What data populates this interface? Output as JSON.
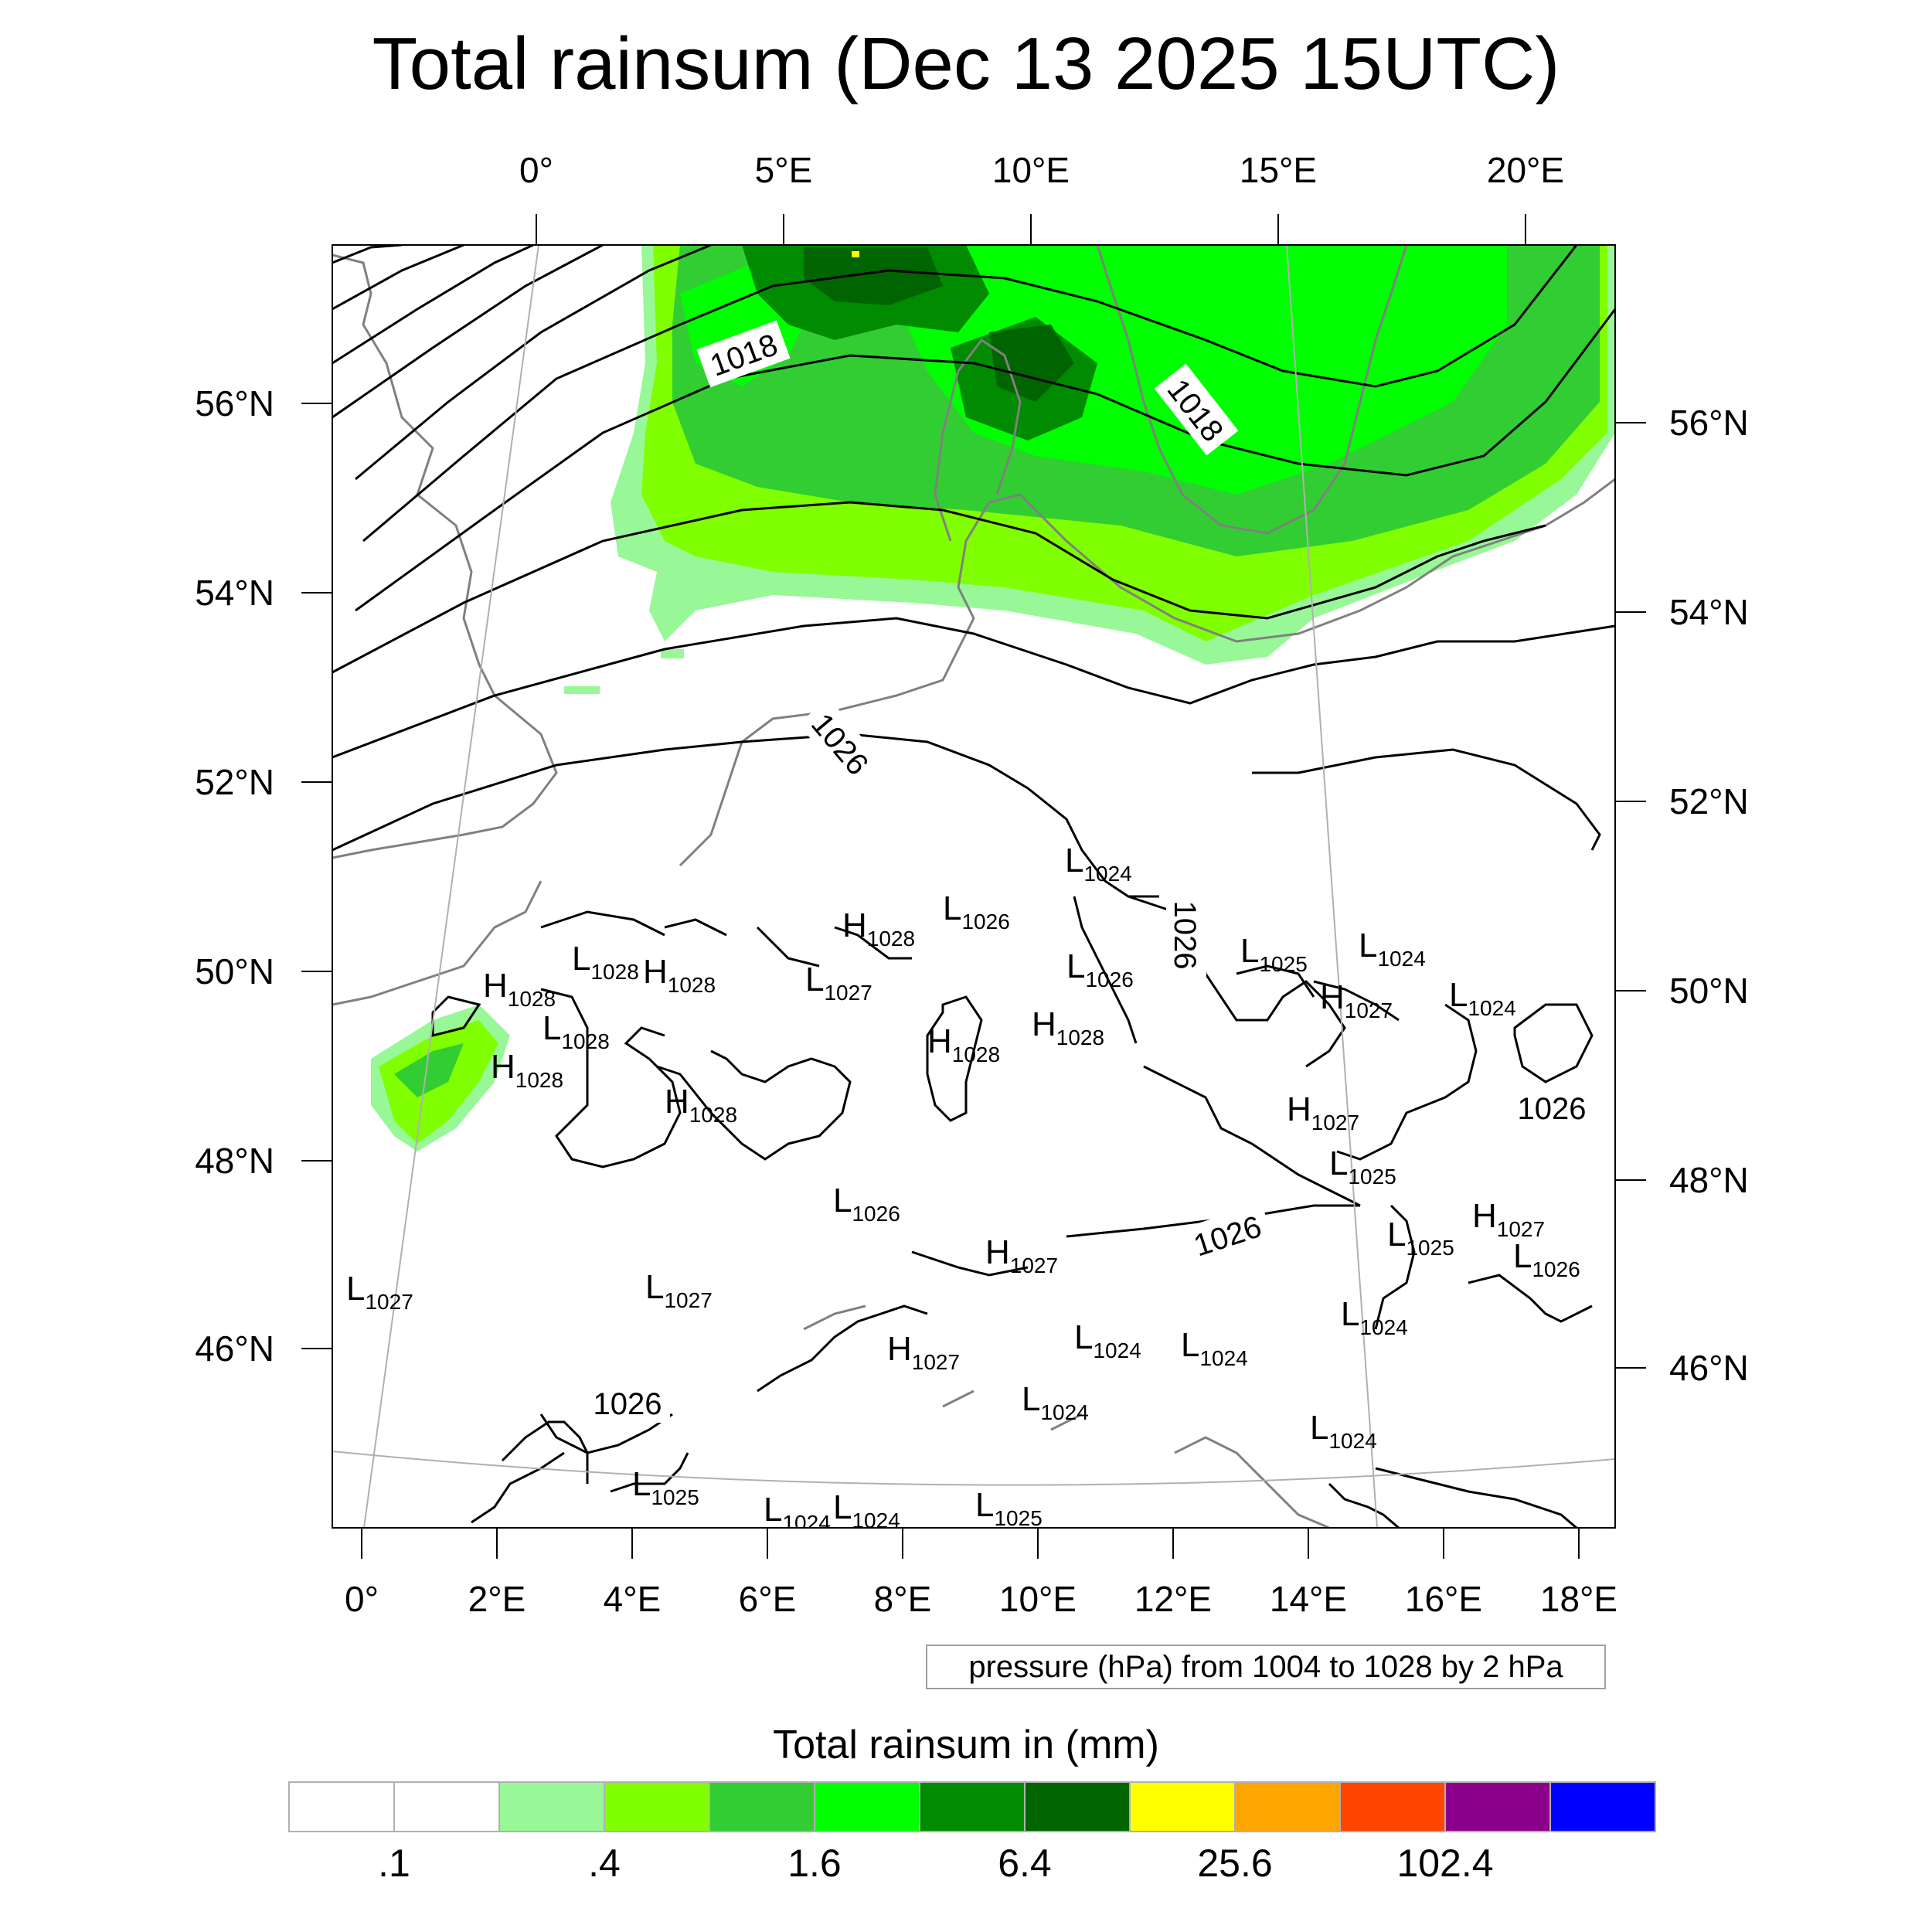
{
  "title": "Total rainsum (Dec 13 2025 15UTC)",
  "top_lon_labels": [
    "0°",
    "5°E",
    "10°E",
    "15°E",
    "20°E"
  ],
  "bottom_lon_labels": [
    "0°",
    "2°E",
    "4°E",
    "6°E",
    "8°E",
    "10°E",
    "12°E",
    "14°E",
    "16°E",
    "18°E"
  ],
  "left_lat_labels": [
    "56°N",
    "54°N",
    "52°N",
    "50°N",
    "48°N",
    "46°N"
  ],
  "right_lat_labels": [
    "56°N",
    "54°N",
    "52°N",
    "50°N",
    "48°N",
    "46°N"
  ],
  "contour_note": "pressure (hPa) from 1004 to 1028 by 2 hPa",
  "colorbar": {
    "title": "Total rainsum in (mm)",
    "colors": [
      "#ffffff",
      "#ffffff",
      "#98f898",
      "#80ff00",
      "#32cd32",
      "#00ff00",
      "#008b00",
      "#006400",
      "#ffff00",
      "#ffa500",
      "#ff4500",
      "#8b008b",
      "#0000ff"
    ],
    "tick_labels": [
      ".1",
      ".4",
      "1.6",
      "6.4",
      "25.6",
      "102.4"
    ]
  },
  "isobar_labels": [
    "1018",
    "1018",
    "1026",
    "1026",
    "1026",
    "1026",
    "1026"
  ],
  "pressure_centers": [
    {
      "type": "L",
      "value": "1024"
    },
    {
      "type": "L",
      "value": "1026"
    },
    {
      "type": "H",
      "value": "1028"
    },
    {
      "type": "L",
      "value": "1028"
    },
    {
      "type": "H",
      "value": "1028"
    },
    {
      "type": "L",
      "value": "1027"
    },
    {
      "type": "L",
      "value": "1026"
    },
    {
      "type": "L",
      "value": "1025"
    },
    {
      "type": "L",
      "value": "1024"
    },
    {
      "type": "H",
      "value": "1028"
    },
    {
      "type": "L",
      "value": "1028"
    },
    {
      "type": "H",
      "value": "1028"
    },
    {
      "type": "H",
      "value": "1028"
    },
    {
      "type": "H",
      "value": "1028"
    },
    {
      "type": "H",
      "value": "1028"
    },
    {
      "type": "H",
      "value": "1027"
    },
    {
      "type": "L",
      "value": "1024"
    },
    {
      "type": "H",
      "value": "1027"
    },
    {
      "type": "L",
      "value": "1025"
    },
    {
      "type": "L",
      "value": "1026"
    },
    {
      "type": "H",
      "value": "1027"
    },
    {
      "type": "L",
      "value": "1025"
    },
    {
      "type": "H",
      "value": "1027"
    },
    {
      "type": "L",
      "value": "1026"
    },
    {
      "type": "L",
      "value": "1027"
    },
    {
      "type": "L",
      "value": "1027"
    },
    {
      "type": "H",
      "value": "1027"
    },
    {
      "type": "L",
      "value": "1024"
    },
    {
      "type": "L",
      "value": "1024"
    },
    {
      "type": "L",
      "value": "1024"
    },
    {
      "type": "L",
      "value": "1024"
    },
    {
      "type": "L",
      "value": "1024"
    },
    {
      "type": "L",
      "value": "1025"
    },
    {
      "type": "L",
      "value": "1024"
    },
    {
      "type": "L",
      "value": "1024"
    },
    {
      "type": "L",
      "value": "1025"
    }
  ]
}
